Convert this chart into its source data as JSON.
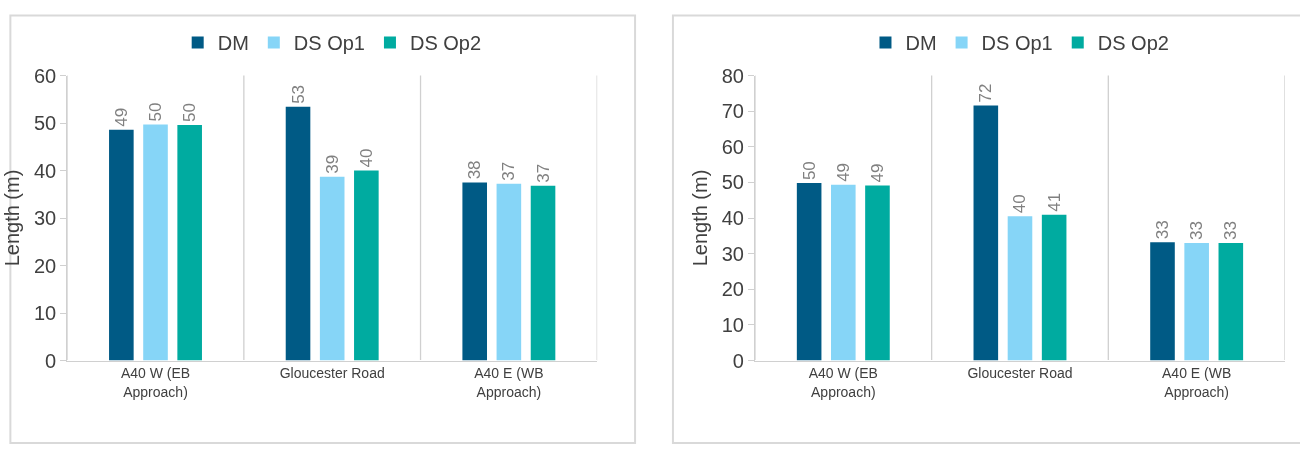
{
  "chart_data": [
    {
      "type": "bar",
      "ylabel": "Length (m)",
      "categories": [
        "A40 W (EB Approach)",
        "Gloucester Road",
        "A40 E (WB Approach)"
      ],
      "ylim": [
        0,
        60
      ],
      "yticks": [
        0,
        10,
        20,
        30,
        40,
        50,
        60
      ],
      "grid": "x",
      "legend": "top",
      "series": [
        {
          "name": "DM",
          "color": "#005a85",
          "values": [
            48.6,
            53.4,
            37.5
          ],
          "value_labels": [
            "49",
            "53",
            "38"
          ]
        },
        {
          "name": "DS Op1",
          "color": "#86d5f7",
          "values": [
            49.7,
            38.7,
            37.2
          ],
          "value_labels": [
            "50",
            "39",
            "37"
          ]
        },
        {
          "name": "DS Op2",
          "color": "#00aba0",
          "values": [
            49.6,
            40.0,
            36.8
          ],
          "value_labels": [
            "50",
            "40",
            "37"
          ]
        }
      ]
    },
    {
      "type": "bar",
      "ylabel": "Length (m)",
      "categories": [
        "A40 W (EB Approach)",
        "Gloucester Road",
        "A40 E (WB Approach)"
      ],
      "ylim": [
        0,
        80
      ],
      "yticks": [
        0,
        10,
        20,
        30,
        40,
        50,
        60,
        70,
        80
      ],
      "grid": "x",
      "legend": "top",
      "series": [
        {
          "name": "DM",
          "color": "#005a85",
          "values": [
            49.8,
            71.6,
            33.2
          ],
          "value_labels": [
            "50",
            "72",
            "33"
          ]
        },
        {
          "name": "DS Op1",
          "color": "#86d5f7",
          "values": [
            49.3,
            40.5,
            33.0
          ],
          "value_labels": [
            "49",
            "40",
            "33"
          ]
        },
        {
          "name": "DS Op2",
          "color": "#00aba0",
          "values": [
            49.1,
            40.9,
            33.0
          ],
          "value_labels": [
            "49",
            "41",
            "33"
          ]
        }
      ]
    }
  ]
}
